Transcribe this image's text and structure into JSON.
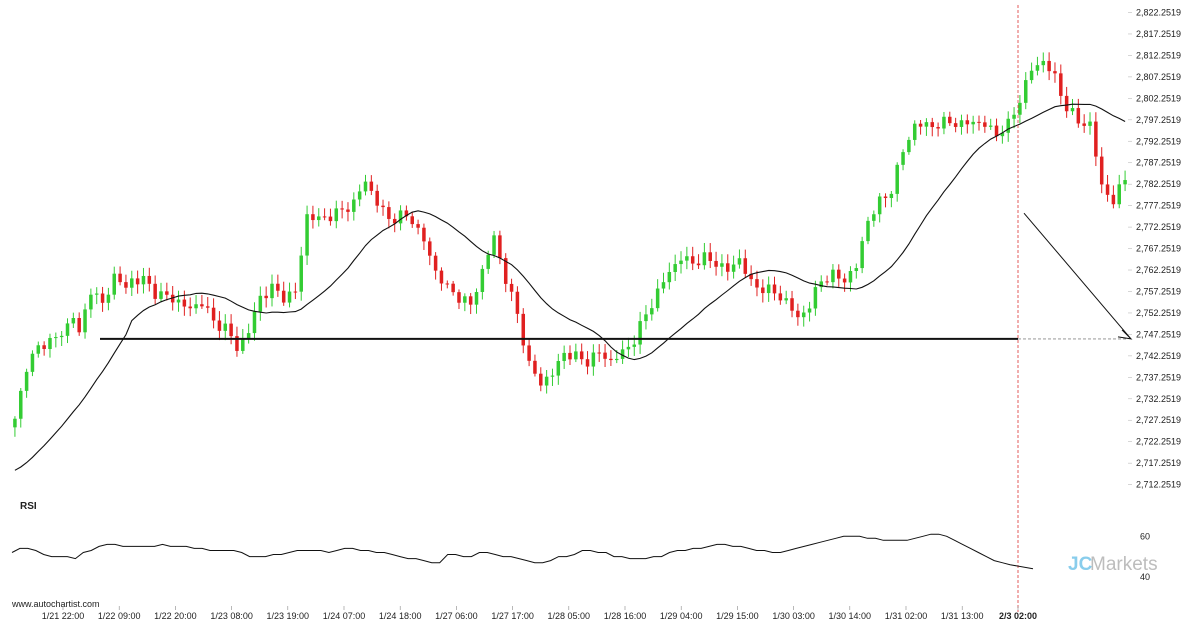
{
  "chart_data": {
    "type": "candlestick",
    "title": "",
    "y_ticks": [
      "2,712.2519",
      "2,717.2519",
      "2,722.2519",
      "2,727.2519",
      "2,732.2519",
      "2,737.2519",
      "2,742.2519",
      "2,747.2519",
      "2,752.2519",
      "2,757.2519",
      "2,762.2519",
      "2,767.2519",
      "2,772.2519",
      "2,777.2519",
      "2,782.2519",
      "2,787.2519",
      "2,792.2519",
      "2,797.2519",
      "2,802.2519",
      "2,807.2519",
      "2,812.2519",
      "2,817.2519",
      "2,822.2519"
    ],
    "x_ticks": [
      "1/21 22:00",
      "1/22 09:00",
      "1/22 20:00",
      "1/23 08:00",
      "1/23 19:00",
      "1/24 07:00",
      "1/24 18:00",
      "1/27 06:00",
      "1/27 17:00",
      "1/28 05:00",
      "1/28 16:00",
      "1/29 04:00",
      "1/29 15:00",
      "1/30 03:00",
      "1/30 14:00",
      "1/31 02:00",
      "1/31 13:00",
      "2/3 02:00"
    ],
    "highlight_x_tick": "2/3 02:00",
    "ylim": [
      2711,
      2824
    ],
    "key_level": 2746.2,
    "projection": {
      "from_price": 2775.5,
      "to_price": 2746.2
    },
    "colors": {
      "up": "#33cc33",
      "down": "#e02020",
      "ma": "#111111",
      "level": "#111111"
    },
    "close_path": [
      [
        0,
        2727
      ],
      [
        2,
        2740
      ],
      [
        4,
        2744
      ],
      [
        6,
        2746
      ],
      [
        8,
        2747
      ],
      [
        10,
        2752
      ],
      [
        11,
        2747
      ],
      [
        13,
        2758
      ],
      [
        15,
        2754
      ],
      [
        17,
        2761
      ],
      [
        19,
        2758
      ],
      [
        20,
        2760
      ],
      [
        22,
        2760
      ],
      [
        24,
        2757
      ],
      [
        26,
        2756
      ],
      [
        28,
        2755
      ],
      [
        30,
        2753
      ],
      [
        32,
        2755
      ],
      [
        34,
        2750
      ],
      [
        36,
        2749
      ],
      [
        38,
        2744
      ],
      [
        40,
        2748
      ],
      [
        42,
        2756
      ],
      [
        44,
        2758
      ],
      [
        46,
        2756
      ],
      [
        48,
        2757
      ],
      [
        50,
        2775
      ],
      [
        52,
        2774
      ],
      [
        54,
        2775
      ],
      [
        56,
        2776
      ],
      [
        58,
        2778
      ],
      [
        60,
        2783
      ],
      [
        62,
        2778
      ],
      [
        64,
        2774
      ],
      [
        66,
        2775
      ],
      [
        68,
        2774
      ],
      [
        70,
        2769
      ],
      [
        72,
        2762
      ],
      [
        74,
        2758
      ],
      [
        76,
        2756
      ],
      [
        78,
        2754
      ],
      [
        80,
        2762
      ],
      [
        82,
        2770
      ],
      [
        84,
        2760
      ],
      [
        86,
        2752
      ],
      [
        88,
        2740
      ],
      [
        90,
        2736
      ],
      [
        92,
        2738
      ],
      [
        94,
        2743
      ],
      [
        96,
        2742
      ],
      [
        98,
        2741
      ],
      [
        100,
        2743
      ],
      [
        102,
        2741
      ],
      [
        104,
        2743
      ],
      [
        106,
        2746
      ],
      [
        108,
        2752
      ],
      [
        110,
        2757
      ],
      [
        112,
        2762
      ],
      [
        114,
        2765
      ],
      [
        116,
        2764
      ],
      [
        118,
        2765
      ],
      [
        120,
        2764
      ],
      [
        122,
        2762
      ],
      [
        124,
        2765
      ],
      [
        126,
        2759
      ],
      [
        128,
        2758
      ],
      [
        130,
        2757
      ],
      [
        132,
        2755
      ],
      [
        134,
        2751
      ],
      [
        136,
        2754
      ],
      [
        138,
        2760
      ],
      [
        140,
        2761
      ],
      [
        142,
        2760
      ],
      [
        144,
        2763
      ],
      [
        146,
        2774
      ],
      [
        148,
        2778
      ],
      [
        150,
        2781
      ],
      [
        152,
        2790
      ],
      [
        154,
        2796
      ],
      [
        156,
        2796
      ],
      [
        158,
        2796
      ],
      [
        160,
        2797
      ],
      [
        162,
        2796
      ],
      [
        164,
        2797
      ],
      [
        166,
        2796
      ],
      [
        168,
        2794
      ],
      [
        170,
        2796
      ],
      [
        172,
        2802
      ],
      [
        174,
        2809
      ],
      [
        176,
        2811
      ],
      [
        178,
        2807
      ],
      [
        180,
        2800
      ],
      [
        182,
        2797
      ],
      [
        184,
        2796
      ],
      [
        186,
        2782
      ],
      [
        188,
        2778
      ],
      [
        190,
        2784
      ]
    ],
    "rsi": {
      "label": "RSI",
      "ticks": [
        "60",
        "40"
      ],
      "ylim": [
        36,
        68
      ],
      "values": [
        52,
        54,
        54,
        53,
        51,
        50,
        50,
        50,
        49,
        52,
        53,
        55,
        56,
        56,
        55,
        55,
        55,
        55,
        55,
        56,
        55,
        55,
        55,
        54,
        54,
        53,
        53,
        53,
        53,
        52,
        50,
        50,
        50,
        51,
        51,
        52,
        53,
        53,
        53,
        53,
        52,
        53,
        54,
        54,
        53,
        53,
        52,
        52,
        51,
        50,
        49,
        49,
        48,
        47,
        47,
        51,
        51,
        50,
        50,
        52,
        52,
        51,
        50,
        50,
        49,
        48,
        47,
        47,
        48,
        50,
        50,
        51,
        53,
        53,
        52,
        52,
        50,
        50,
        49,
        49,
        49,
        50,
        50,
        52,
        53,
        53,
        54,
        54,
        55,
        56,
        56,
        55,
        55,
        54,
        53,
        53,
        52,
        52,
        53,
        54,
        55,
        56,
        57,
        58,
        59,
        60,
        60,
        60,
        59,
        59,
        58,
        58,
        58,
        58,
        59,
        60,
        61,
        61,
        60,
        58,
        56,
        54,
        52,
        50,
        48,
        47,
        46,
        44
      ]
    },
    "watermark": {
      "a": "JC",
      "b": "Markets"
    },
    "site": "www.autochartist.com"
  }
}
